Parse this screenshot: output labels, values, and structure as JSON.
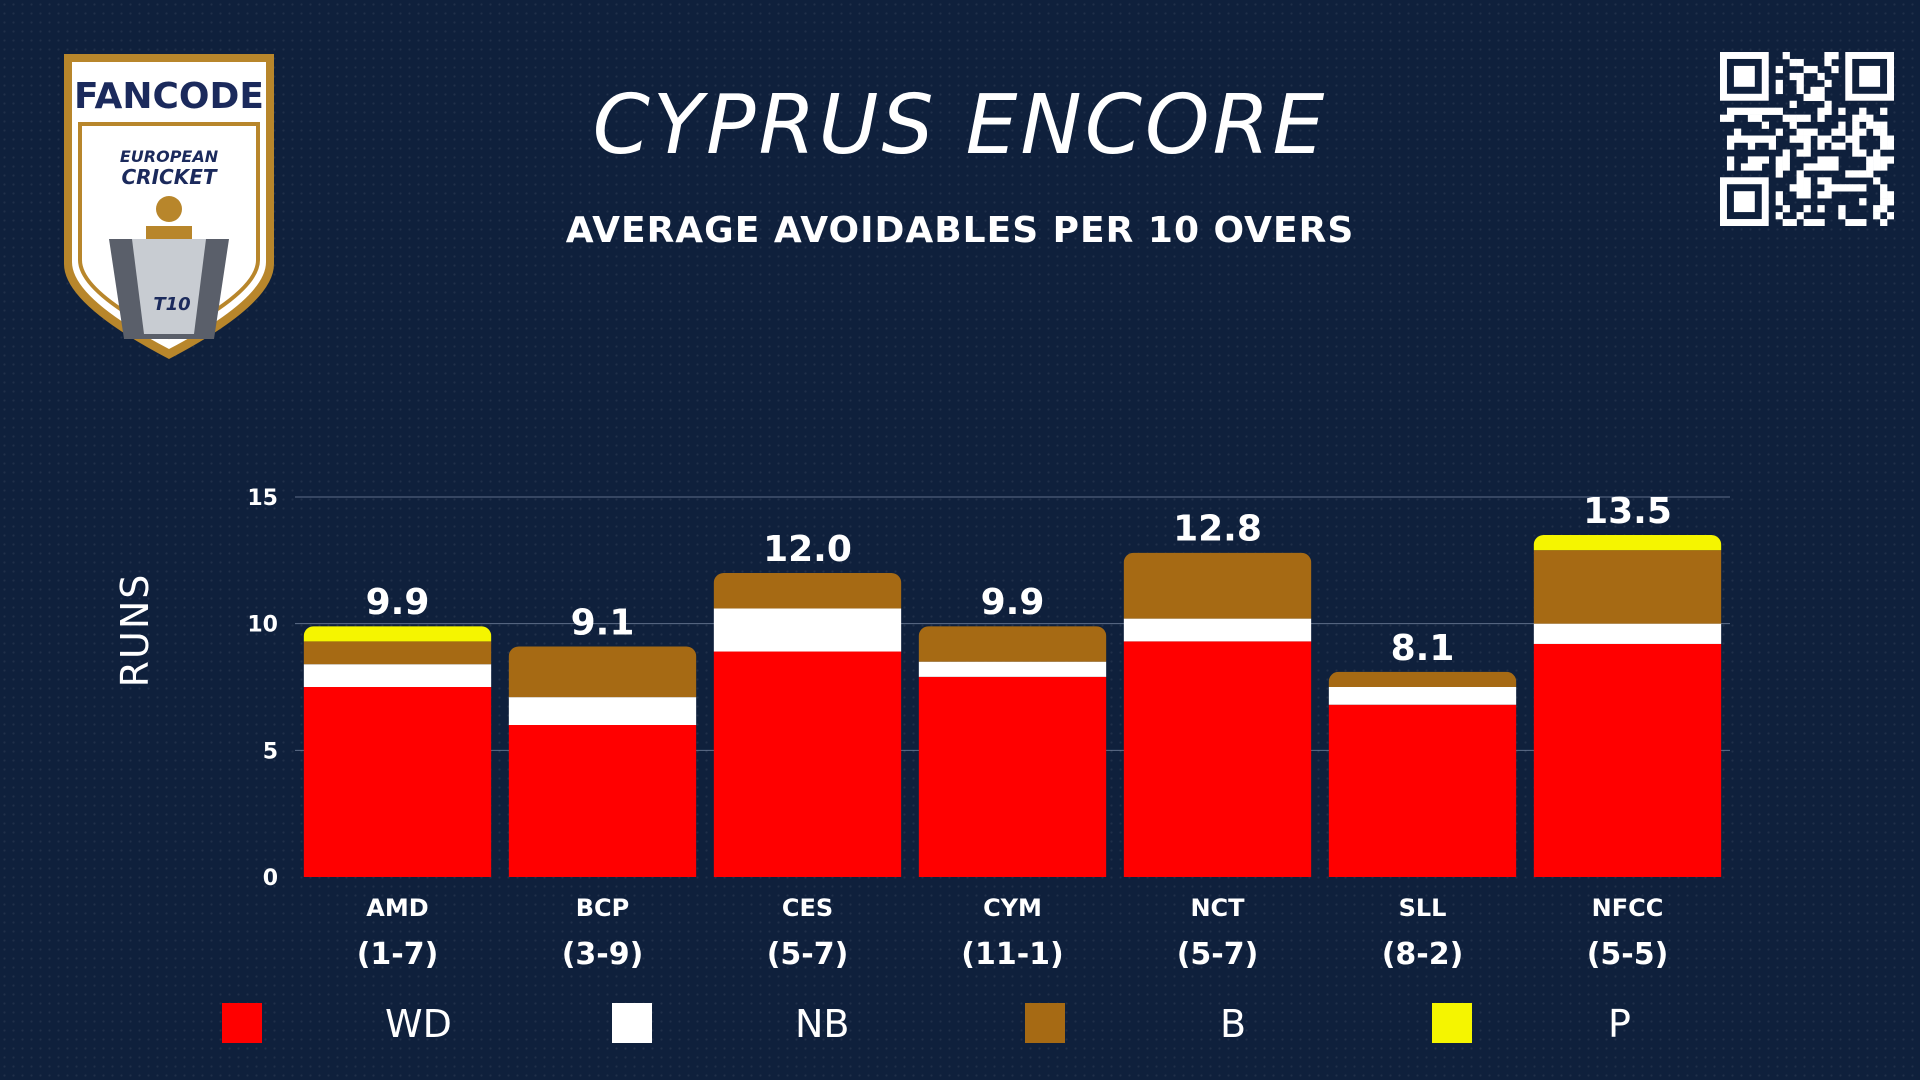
{
  "header": {
    "title": "CYPRUS ENCORE",
    "subtitle": "AVERAGE AVOIDABLES PER 10 OVERS"
  },
  "logo": {
    "brand": "FANCODE",
    "line1": "EUROPEAN",
    "line2": "CRICKET",
    "badge": "T10"
  },
  "icons": {
    "qr": "qr-code-icon",
    "logo": "fancode-ecs-t10-logo"
  },
  "colors": {
    "background": "#0f203c",
    "WD": "#ff0000",
    "NB": "#ffffff",
    "B": "#a66a14",
    "P": "#f5f500",
    "brand_orange": "#f26522",
    "brand_blue": "#1b2a5c",
    "gold": "#b8862b"
  },
  "chart_data": {
    "type": "bar",
    "stacked": true,
    "title": "",
    "xlabel": "",
    "ylabel": "RUNS",
    "ylim": [
      0,
      15
    ],
    "yticks": [
      0,
      5,
      10,
      15
    ],
    "grid": true,
    "legend_position": "bottom",
    "categories": [
      "AMD",
      "BCP",
      "CES",
      "CYM",
      "NCT",
      "SLL",
      "NFCC"
    ],
    "records": [
      "(1-7)",
      "(3-9)",
      "(5-7)",
      "(11-1)",
      "(5-7)",
      "(8-2)",
      "(5-5)"
    ],
    "totals": [
      "9.9",
      "9.1",
      "12.0",
      "9.9",
      "12.8",
      "8.1",
      "13.5"
    ],
    "series": [
      {
        "name": "WD",
        "color": "#ff0000",
        "values": [
          7.5,
          6.0,
          8.9,
          7.9,
          9.3,
          6.8,
          9.2
        ]
      },
      {
        "name": "NB",
        "color": "#ffffff",
        "values": [
          0.9,
          1.1,
          1.7,
          0.6,
          0.9,
          0.7,
          0.8
        ]
      },
      {
        "name": "B",
        "color": "#a66a14",
        "values": [
          0.9,
          2.0,
          1.4,
          1.4,
          2.6,
          0.6,
          2.9
        ]
      },
      {
        "name": "P",
        "color": "#f5f500",
        "values": [
          0.6,
          0.0,
          0.0,
          0.0,
          0.0,
          0.0,
          0.6
        ]
      }
    ]
  }
}
